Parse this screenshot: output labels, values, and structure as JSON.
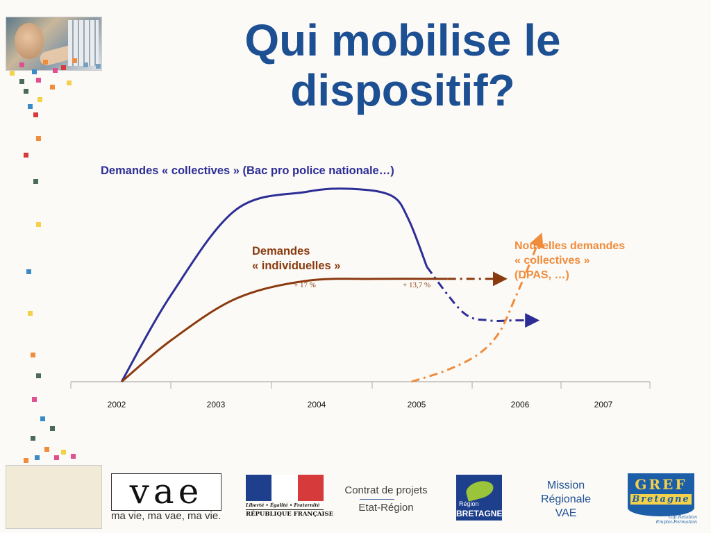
{
  "slide": {
    "title_line1": "Qui mobilise le",
    "title_line2": "dispositif?"
  },
  "chart_data": {
    "type": "line",
    "categories": [
      "2002",
      "2003",
      "2004",
      "2005",
      "2006",
      "2007"
    ],
    "series": [
      {
        "name": "Demandes « collectives » (Bac pro police nationale…)",
        "color": "#2d2d96",
        "style": "solid then dash-dot",
        "x": [
          2002.05,
          2002.55,
          2003.2,
          2003.9,
          2004.35,
          2004.75,
          2004.92,
          2005.1,
          2005.45,
          2005.7,
          2005.95,
          2006.2
        ],
        "y": [
          0,
          44,
          87,
          96,
          97.5,
          94,
          82,
          58,
          35,
          31,
          31,
          31
        ]
      },
      {
        "name": "Demandes « individuelles »",
        "color": "#8b3a0f",
        "style": "solid then dash-dot",
        "x": [
          2002.05,
          2002.55,
          2003.2,
          2003.9,
          2004.6,
          2005.3,
          2005.85
        ],
        "y": [
          0,
          21,
          42,
          51,
          52,
          52,
          52
        ]
      },
      {
        "name": "Nouvelles demandes « collectives » (DPAS, …)",
        "color": "#f08c3c",
        "style": "dash-dot",
        "x": [
          2004.95,
          2005.3,
          2005.6,
          2005.8,
          2005.95,
          2006.1,
          2006.25
        ],
        "y": [
          0,
          6,
          14,
          25,
          42,
          58,
          74
        ]
      }
    ],
    "annotations": [
      "+ 17 %",
      "+ 13,7 %"
    ],
    "xlabel": "",
    "ylabel": "",
    "grid": false,
    "legend": "inline labels"
  },
  "footer": {
    "vae_logo": "vae",
    "vae_tagline": "ma vie, ma vae, ma vie.",
    "rf_motto": "Liberté • Égalité • Fraternité",
    "rf_name": "RÉPUBLIQUE FRANÇAISE",
    "contrat_line1": "Contrat de projets",
    "contrat_line2": "Etat-Région",
    "region_small": "Région",
    "region_big": "BRETAGNE",
    "mission_line1": "Mission",
    "mission_line2": "Régionale",
    "mission_line3": "VAE",
    "gref_name": "GREF",
    "gref_region": "Bretagne",
    "gref_sub1": "Gip Relation",
    "gref_sub2": "Emploi-Formation"
  }
}
